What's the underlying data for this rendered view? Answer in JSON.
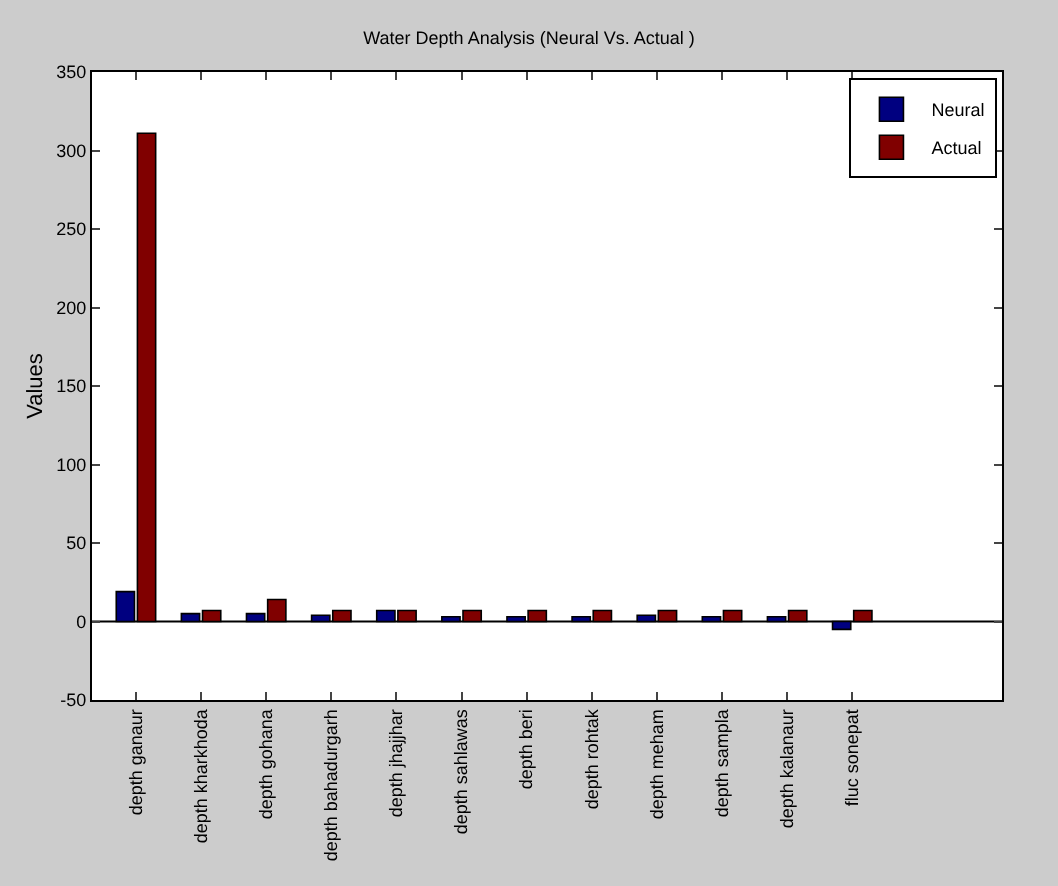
{
  "chart_data": {
    "type": "bar",
    "title": "Water Depth Analysis (Neural Vs. Actual )",
    "ylabel": "Values",
    "categories": [
      "depth ganaur",
      "depth kharkhoda",
      "depth gohana",
      "depth bahadurgarh",
      "depth jhajjhar",
      "depth sahlawas",
      "depth beri",
      "depth rohtak",
      "depth meham",
      "depth sampla",
      "depth kalanaur",
      "fluc sonepat"
    ],
    "series": [
      {
        "name": "Neural",
        "color": "#000080",
        "values": [
          19,
          5,
          5,
          4,
          7,
          3,
          3,
          3,
          4,
          3,
          3,
          -5
        ]
      },
      {
        "name": "Actual",
        "color": "#800000",
        "values": [
          311,
          7,
          14,
          7,
          7,
          7,
          7,
          7,
          7,
          7,
          7,
          7
        ]
      }
    ],
    "ylim": [
      -50,
      350
    ],
    "yticks": [
      -50,
      0,
      50,
      100,
      150,
      200,
      250,
      300,
      350
    ],
    "ref_lines": [
      {
        "axis": "y",
        "value": 0,
        "color": "#000000"
      }
    ],
    "legend": "top right"
  }
}
